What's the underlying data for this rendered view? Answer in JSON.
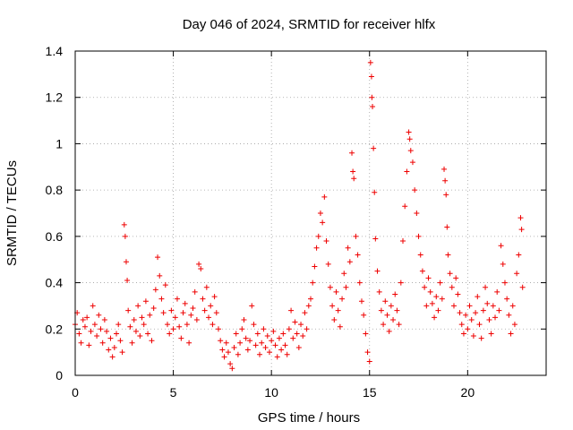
{
  "chart_data": {
    "type": "scatter",
    "title": "Day 046 of 2024, SRMTID for receiver hlfx",
    "xlabel": "GPS time / hours",
    "ylabel": "SRMTID / TECUs",
    "xlim": [
      0,
      24
    ],
    "ylim": [
      0,
      1.4
    ],
    "xticks": [
      0,
      5,
      10,
      15,
      20
    ],
    "xtick_labels": [
      "0",
      "5",
      "10",
      "15",
      "20"
    ],
    "yticks": [
      0,
      0.2,
      0.4,
      0.6,
      0.8,
      1.0,
      1.2,
      1.4
    ],
    "ytick_labels": [
      "0",
      "0.2",
      "0.4",
      "0.6",
      "0.8",
      "1",
      "1.2",
      "1.4"
    ],
    "grid": true,
    "marker": "plus",
    "color": "#ee0000",
    "series": [
      {
        "name": "SRMTID",
        "points": [
          [
            0.0,
            0.22
          ],
          [
            0.1,
            0.27
          ],
          [
            0.2,
            0.18
          ],
          [
            0.3,
            0.14
          ],
          [
            0.4,
            0.24
          ],
          [
            0.5,
            0.21
          ],
          [
            0.6,
            0.25
          ],
          [
            0.7,
            0.13
          ],
          [
            0.8,
            0.19
          ],
          [
            0.9,
            0.3
          ],
          [
            1.0,
            0.22
          ],
          [
            1.1,
            0.17
          ],
          [
            1.2,
            0.26
          ],
          [
            1.3,
            0.2
          ],
          [
            1.4,
            0.14
          ],
          [
            1.5,
            0.24
          ],
          [
            1.6,
            0.19
          ],
          [
            1.7,
            0.11
          ],
          [
            1.8,
            0.16
          ],
          [
            1.9,
            0.08
          ],
          [
            2.0,
            0.12
          ],
          [
            2.1,
            0.18
          ],
          [
            2.2,
            0.22
          ],
          [
            2.3,
            0.15
          ],
          [
            2.4,
            0.1
          ],
          [
            2.5,
            0.65
          ],
          [
            2.55,
            0.6
          ],
          [
            2.6,
            0.49
          ],
          [
            2.65,
            0.41
          ],
          [
            2.7,
            0.28
          ],
          [
            2.8,
            0.21
          ],
          [
            2.9,
            0.14
          ],
          [
            3.0,
            0.24
          ],
          [
            3.1,
            0.19
          ],
          [
            3.2,
            0.3
          ],
          [
            3.3,
            0.17
          ],
          [
            3.4,
            0.25
          ],
          [
            3.5,
            0.22
          ],
          [
            3.6,
            0.32
          ],
          [
            3.7,
            0.18
          ],
          [
            3.8,
            0.26
          ],
          [
            3.9,
            0.15
          ],
          [
            4.0,
            0.29
          ],
          [
            4.1,
            0.37
          ],
          [
            4.2,
            0.51
          ],
          [
            4.3,
            0.43
          ],
          [
            4.4,
            0.33
          ],
          [
            4.5,
            0.27
          ],
          [
            4.6,
            0.39
          ],
          [
            4.7,
            0.22
          ],
          [
            4.8,
            0.18
          ],
          [
            4.9,
            0.28
          ],
          [
            5.0,
            0.2
          ],
          [
            5.1,
            0.25
          ],
          [
            5.2,
            0.33
          ],
          [
            5.3,
            0.21
          ],
          [
            5.4,
            0.16
          ],
          [
            5.5,
            0.27
          ],
          [
            5.6,
            0.31
          ],
          [
            5.7,
            0.22
          ],
          [
            5.8,
            0.14
          ],
          [
            5.9,
            0.26
          ],
          [
            6.0,
            0.29
          ],
          [
            6.1,
            0.36
          ],
          [
            6.2,
            0.24
          ],
          [
            6.3,
            0.48
          ],
          [
            6.4,
            0.46
          ],
          [
            6.5,
            0.33
          ],
          [
            6.6,
            0.28
          ],
          [
            6.7,
            0.38
          ],
          [
            6.8,
            0.25
          ],
          [
            6.9,
            0.3
          ],
          [
            7.0,
            0.22
          ],
          [
            7.1,
            0.34
          ],
          [
            7.2,
            0.27
          ],
          [
            7.3,
            0.2
          ],
          [
            7.4,
            0.15
          ],
          [
            7.5,
            0.11
          ],
          [
            7.6,
            0.08
          ],
          [
            7.7,
            0.14
          ],
          [
            7.8,
            0.1
          ],
          [
            7.9,
            0.05
          ],
          [
            8.0,
            0.03
          ],
          [
            8.1,
            0.12
          ],
          [
            8.2,
            0.18
          ],
          [
            8.3,
            0.09
          ],
          [
            8.4,
            0.14
          ],
          [
            8.5,
            0.2
          ],
          [
            8.6,
            0.24
          ],
          [
            8.7,
            0.16
          ],
          [
            8.8,
            0.11
          ],
          [
            8.9,
            0.15
          ],
          [
            9.0,
            0.3
          ],
          [
            9.1,
            0.22
          ],
          [
            9.2,
            0.13
          ],
          [
            9.3,
            0.18
          ],
          [
            9.4,
            0.09
          ],
          [
            9.5,
            0.14
          ],
          [
            9.6,
            0.2
          ],
          [
            9.7,
            0.12
          ],
          [
            9.8,
            0.17
          ],
          [
            9.9,
            0.1
          ],
          [
            10.0,
            0.15
          ],
          [
            10.1,
            0.19
          ],
          [
            10.2,
            0.13
          ],
          [
            10.3,
            0.08
          ],
          [
            10.4,
            0.16
          ],
          [
            10.5,
            0.11
          ],
          [
            10.6,
            0.18
          ],
          [
            10.7,
            0.13
          ],
          [
            10.8,
            0.09
          ],
          [
            10.9,
            0.2
          ],
          [
            11.0,
            0.28
          ],
          [
            11.1,
            0.16
          ],
          [
            11.2,
            0.23
          ],
          [
            11.3,
            0.18
          ],
          [
            11.4,
            0.12
          ],
          [
            11.5,
            0.22
          ],
          [
            11.6,
            0.17
          ],
          [
            11.7,
            0.27
          ],
          [
            11.8,
            0.2
          ],
          [
            11.9,
            0.3
          ],
          [
            12.0,
            0.33
          ],
          [
            12.1,
            0.4
          ],
          [
            12.2,
            0.47
          ],
          [
            12.3,
            0.55
          ],
          [
            12.4,
            0.6
          ],
          [
            12.5,
            0.7
          ],
          [
            12.6,
            0.66
          ],
          [
            12.7,
            0.77
          ],
          [
            12.8,
            0.58
          ],
          [
            12.9,
            0.48
          ],
          [
            13.0,
            0.38
          ],
          [
            13.1,
            0.3
          ],
          [
            13.2,
            0.24
          ],
          [
            13.3,
            0.36
          ],
          [
            13.4,
            0.28
          ],
          [
            13.5,
            0.21
          ],
          [
            13.6,
            0.33
          ],
          [
            13.7,
            0.44
          ],
          [
            13.8,
            0.38
          ],
          [
            13.9,
            0.55
          ],
          [
            14.0,
            0.49
          ],
          [
            14.1,
            0.96
          ],
          [
            14.15,
            0.88
          ],
          [
            14.2,
            0.85
          ],
          [
            14.3,
            0.6
          ],
          [
            14.4,
            0.52
          ],
          [
            14.5,
            0.4
          ],
          [
            14.6,
            0.32
          ],
          [
            14.7,
            0.26
          ],
          [
            14.8,
            0.18
          ],
          [
            14.9,
            0.1
          ],
          [
            15.0,
            0.06
          ],
          [
            15.05,
            1.35
          ],
          [
            15.1,
            1.29
          ],
          [
            15.12,
            1.2
          ],
          [
            15.15,
            1.16
          ],
          [
            15.2,
            0.98
          ],
          [
            15.25,
            0.79
          ],
          [
            15.3,
            0.59
          ],
          [
            15.4,
            0.45
          ],
          [
            15.5,
            0.36
          ],
          [
            15.6,
            0.28
          ],
          [
            15.7,
            0.22
          ],
          [
            15.8,
            0.32
          ],
          [
            15.9,
            0.26
          ],
          [
            16.0,
            0.19
          ],
          [
            16.1,
            0.3
          ],
          [
            16.2,
            0.24
          ],
          [
            16.3,
            0.35
          ],
          [
            16.4,
            0.28
          ],
          [
            16.5,
            0.22
          ],
          [
            16.6,
            0.4
          ],
          [
            16.7,
            0.58
          ],
          [
            16.8,
            0.73
          ],
          [
            16.9,
            0.88
          ],
          [
            17.0,
            1.05
          ],
          [
            17.05,
            1.02
          ],
          [
            17.1,
            0.97
          ],
          [
            17.2,
            0.92
          ],
          [
            17.3,
            0.8
          ],
          [
            17.4,
            0.7
          ],
          [
            17.5,
            0.6
          ],
          [
            17.6,
            0.52
          ],
          [
            17.7,
            0.45
          ],
          [
            17.8,
            0.38
          ],
          [
            17.9,
            0.3
          ],
          [
            18.0,
            0.42
          ],
          [
            18.1,
            0.36
          ],
          [
            18.2,
            0.31
          ],
          [
            18.3,
            0.25
          ],
          [
            18.4,
            0.34
          ],
          [
            18.5,
            0.28
          ],
          [
            18.6,
            0.4
          ],
          [
            18.7,
            0.33
          ],
          [
            18.8,
            0.89
          ],
          [
            18.85,
            0.84
          ],
          [
            18.9,
            0.78
          ],
          [
            18.95,
            0.64
          ],
          [
            19.0,
            0.52
          ],
          [
            19.1,
            0.44
          ],
          [
            19.2,
            0.38
          ],
          [
            19.3,
            0.3
          ],
          [
            19.4,
            0.42
          ],
          [
            19.5,
            0.35
          ],
          [
            19.6,
            0.27
          ],
          [
            19.7,
            0.22
          ],
          [
            19.8,
            0.18
          ],
          [
            19.9,
            0.26
          ],
          [
            20.0,
            0.2
          ],
          [
            20.1,
            0.3
          ],
          [
            20.2,
            0.24
          ],
          [
            20.3,
            0.17
          ],
          [
            20.4,
            0.27
          ],
          [
            20.5,
            0.34
          ],
          [
            20.6,
            0.22
          ],
          [
            20.7,
            0.16
          ],
          [
            20.8,
            0.28
          ],
          [
            20.9,
            0.38
          ],
          [
            21.0,
            0.31
          ],
          [
            21.1,
            0.24
          ],
          [
            21.2,
            0.18
          ],
          [
            21.3,
            0.3
          ],
          [
            21.4,
            0.25
          ],
          [
            21.5,
            0.36
          ],
          [
            21.6,
            0.28
          ],
          [
            21.7,
            0.56
          ],
          [
            21.8,
            0.48
          ],
          [
            21.9,
            0.4
          ],
          [
            22.0,
            0.33
          ],
          [
            22.1,
            0.26
          ],
          [
            22.2,
            0.18
          ],
          [
            22.3,
            0.3
          ],
          [
            22.4,
            0.22
          ],
          [
            22.5,
            0.44
          ],
          [
            22.6,
            0.52
          ],
          [
            22.7,
            0.68
          ],
          [
            22.75,
            0.63
          ],
          [
            22.8,
            0.38
          ]
        ]
      }
    ]
  }
}
